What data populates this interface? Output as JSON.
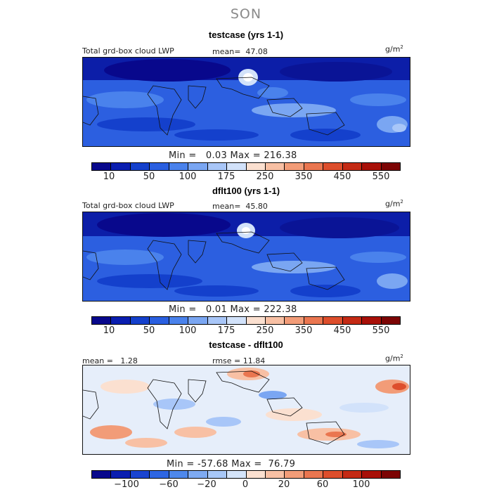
{
  "season": "SON",
  "colors": {
    "bar_main": [
      "#08088c",
      "#0a1eb0",
      "#1440cc",
      "#2a5fe0",
      "#4a82ec",
      "#7aa6f2",
      "#a8c6f8",
      "#d2e2fa",
      "#fbe0d0",
      "#f8c0a4",
      "#f29c78",
      "#ea7650",
      "#dd4e2c",
      "#c42a14",
      "#a81008",
      "#7c0404"
    ],
    "bar_diff": [
      "#08088c",
      "#0a1eb0",
      "#1a44d0",
      "#2e66e2",
      "#4e88ec",
      "#7eaaf2",
      "#a8c8f8",
      "#d4e4fa",
      "#fbe0d0",
      "#f8c0a4",
      "#f29c78",
      "#ea7650",
      "#dd4e2c",
      "#c42a14",
      "#a81008",
      "#7c0404"
    ],
    "diff_bg": "#e6eefa"
  },
  "panels": [
    {
      "title": "testcase (yrs 1-1)",
      "var_label": "Total grd-box cloud LWP",
      "mean_label": "mean=",
      "mean_value": "47.08",
      "units": "g/m",
      "units_exp": "2",
      "min_label": "Min =",
      "min_value": "0.03",
      "max_label": "Max =",
      "max_value": "216.38",
      "ticks": [
        "10",
        "50",
        "100",
        "175",
        "250",
        "350",
        "450",
        "550"
      ]
    },
    {
      "title": "dflt100 (yrs 1-1)",
      "var_label": "Total grd-box cloud LWP",
      "mean_label": "mean=",
      "mean_value": "45.80",
      "units": "g/m",
      "units_exp": "2",
      "min_label": "Min =",
      "min_value": "0.01",
      "max_label": "Max =",
      "max_value": "222.38",
      "ticks": [
        "10",
        "50",
        "100",
        "175",
        "250",
        "350",
        "450",
        "550"
      ]
    },
    {
      "title": "testcase - dflt100",
      "mean_label": "mean =",
      "mean_value": "1.28",
      "rmse_label": "rmse =",
      "rmse_value": "11.84",
      "units": "g/m",
      "units_exp": "2",
      "min_label": "Min =",
      "min_value": "-57.68",
      "max_label": "Max =",
      "max_value": "76.79",
      "ticks": [
        "−100",
        "−60",
        "−20",
        "0",
        "20",
        "60",
        "100"
      ]
    }
  ]
}
